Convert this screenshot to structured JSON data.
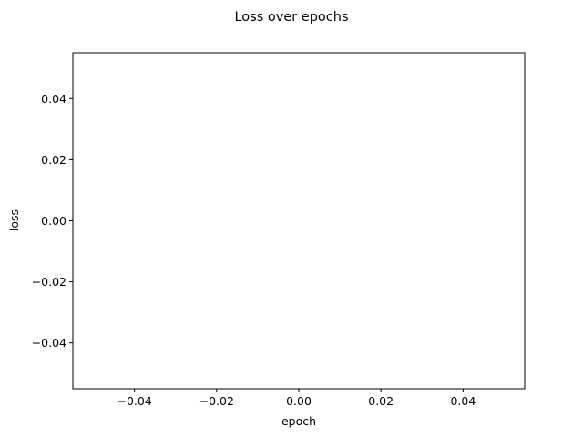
{
  "chart_data": {
    "type": "line",
    "title": "Loss over epochs",
    "xlabel": "epoch",
    "ylabel": "loss",
    "xlim": [
      -0.055,
      0.055
    ],
    "ylim": [
      -0.055,
      0.055
    ],
    "xticks": [
      -0.04,
      -0.02,
      0.0,
      0.02,
      0.04
    ],
    "xtick_labels": [
      "−0.04",
      "−0.02",
      "0.00",
      "0.02",
      "0.04"
    ],
    "yticks": [
      -0.04,
      -0.02,
      0.0,
      0.02,
      0.04
    ],
    "ytick_labels": [
      "−0.04",
      "−0.02",
      "0.00",
      "0.02",
      "0.04"
    ],
    "series": [
      {
        "x": [],
        "y": []
      }
    ],
    "grid": false,
    "legend": "none"
  }
}
